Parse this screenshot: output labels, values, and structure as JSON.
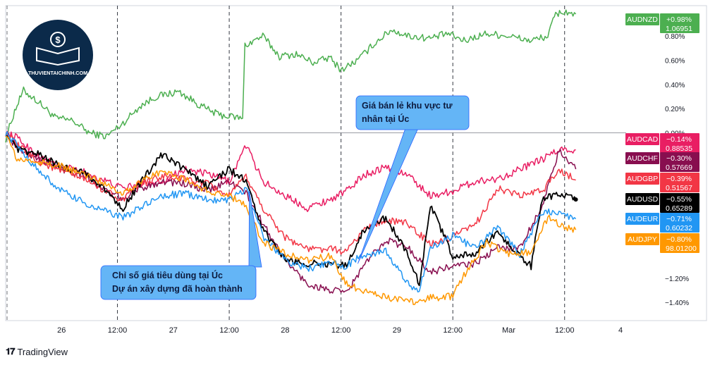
{
  "branding": {
    "logo_text": "THUVIENTAICHINH.COM",
    "footer": "TradingView"
  },
  "colors": {
    "grid": "#e0e3eb",
    "axis_text": "#131722",
    "callout_fill": "#64b5f6",
    "callout_border": "#2962ff"
  },
  "chart_data": {
    "type": "line",
    "xlabel": "",
    "ylabel": "",
    "x_tick_labels": [
      "26",
      "12:00",
      "27",
      "12:00",
      "28",
      "12:00",
      "29",
      "12:00",
      "Mar",
      "12:00",
      "4"
    ],
    "x_ticks": [
      0.5,
      1.0,
      1.5,
      2.0,
      2.5,
      3.0,
      3.5,
      4.0,
      4.5,
      5.0,
      5.5
    ],
    "day_separators": [
      1.0,
      2.0,
      3.0,
      4.0,
      5.0
    ],
    "xlim": [
      0,
      5.5
    ],
    "ylim": [
      -1.55,
      1.05
    ],
    "y_unit": "%",
    "y_ticks": [
      0.8,
      0.6,
      0.4,
      0.2,
      0.0,
      -1.2,
      -1.4
    ],
    "y_tick_labels": [
      "0.80%",
      "0.60%",
      "0.40%",
      "0.20%",
      "0.00%",
      "−1.20%",
      "−1.40%"
    ],
    "zero_line": 0.0,
    "series": [
      {
        "name": "AUDNZD",
        "color": "#4caf50",
        "change": "+0.98%",
        "price": "1.06951",
        "anchors": [
          [
            0.0,
            -0.05
          ],
          [
            0.08,
            0.18
          ],
          [
            0.16,
            0.35
          ],
          [
            0.3,
            0.25
          ],
          [
            0.45,
            0.12
          ],
          [
            0.6,
            0.1
          ],
          [
            0.75,
            0.0
          ],
          [
            0.9,
            -0.03
          ],
          [
            1.05,
            0.08
          ],
          [
            1.2,
            0.22
          ],
          [
            1.35,
            0.3
          ],
          [
            1.55,
            0.34
          ],
          [
            1.75,
            0.22
          ],
          [
            1.9,
            0.15
          ],
          [
            2.05,
            0.13
          ],
          [
            2.12,
            0.12
          ],
          [
            2.14,
            0.72
          ],
          [
            2.3,
            0.8
          ],
          [
            2.45,
            0.63
          ],
          [
            2.6,
            0.65
          ],
          [
            2.75,
            0.58
          ],
          [
            2.9,
            0.62
          ],
          [
            3.0,
            0.52
          ],
          [
            3.15,
            0.6
          ],
          [
            3.3,
            0.74
          ],
          [
            3.45,
            0.85
          ],
          [
            3.6,
            0.8
          ],
          [
            3.8,
            0.78
          ],
          [
            3.95,
            0.82
          ],
          [
            4.1,
            0.76
          ],
          [
            4.3,
            0.82
          ],
          [
            4.5,
            0.8
          ],
          [
            4.7,
            0.76
          ],
          [
            4.85,
            0.8
          ],
          [
            4.92,
            0.98
          ],
          [
            5.0,
            1.0
          ],
          [
            5.1,
            0.98
          ]
        ]
      },
      {
        "name": "AUDCAD",
        "color": "#e91e63",
        "change": "−0.14%",
        "price": "0.88535",
        "anchors": [
          [
            0.0,
            0.0
          ],
          [
            0.1,
            -0.04
          ],
          [
            0.3,
            -0.2
          ],
          [
            0.5,
            -0.28
          ],
          [
            0.7,
            -0.32
          ],
          [
            0.9,
            -0.4
          ],
          [
            1.05,
            -0.46
          ],
          [
            1.2,
            -0.42
          ],
          [
            1.4,
            -0.4
          ],
          [
            1.6,
            -0.3
          ],
          [
            1.8,
            -0.34
          ],
          [
            2.0,
            -0.4
          ],
          [
            2.15,
            -0.1
          ],
          [
            2.3,
            -0.4
          ],
          [
            2.5,
            -0.52
          ],
          [
            2.7,
            -0.62
          ],
          [
            2.9,
            -0.55
          ],
          [
            3.05,
            -0.48
          ],
          [
            3.2,
            -0.35
          ],
          [
            3.4,
            -0.28
          ],
          [
            3.6,
            -0.35
          ],
          [
            3.8,
            -0.52
          ],
          [
            4.0,
            -0.48
          ],
          [
            4.2,
            -0.4
          ],
          [
            4.4,
            -0.38
          ],
          [
            4.6,
            -0.3
          ],
          [
            4.8,
            -0.22
          ],
          [
            4.95,
            -0.14
          ],
          [
            5.1,
            -0.14
          ]
        ]
      },
      {
        "name": "AUDCHF",
        "color": "#880e4f",
        "change": "−0.30%",
        "price": "0.57669",
        "anchors": [
          [
            0.0,
            0.0
          ],
          [
            0.1,
            -0.12
          ],
          [
            0.3,
            -0.22
          ],
          [
            0.5,
            -0.3
          ],
          [
            0.7,
            -0.34
          ],
          [
            0.9,
            -0.48
          ],
          [
            1.05,
            -0.55
          ],
          [
            1.2,
            -0.46
          ],
          [
            1.4,
            -0.4
          ],
          [
            1.6,
            -0.42
          ],
          [
            1.8,
            -0.48
          ],
          [
            2.0,
            -0.4
          ],
          [
            2.15,
            -0.5
          ],
          [
            2.3,
            -0.75
          ],
          [
            2.5,
            -1.05
          ],
          [
            2.7,
            -1.25
          ],
          [
            2.9,
            -1.3
          ],
          [
            3.05,
            -1.32
          ],
          [
            3.2,
            -1.1
          ],
          [
            3.4,
            -0.88
          ],
          [
            3.6,
            -0.95
          ],
          [
            3.8,
            -1.15
          ],
          [
            4.0,
            -1.1
          ],
          [
            4.2,
            -1.08
          ],
          [
            4.4,
            -0.95
          ],
          [
            4.6,
            -0.95
          ],
          [
            4.8,
            -0.6
          ],
          [
            4.95,
            -0.15
          ],
          [
            5.1,
            -0.3
          ]
        ]
      },
      {
        "name": "AUDGBP",
        "color": "#f23645",
        "change": "−0.39%",
        "price": "0.51567",
        "anchors": [
          [
            0.0,
            0.0
          ],
          [
            0.1,
            -0.1
          ],
          [
            0.3,
            -0.24
          ],
          [
            0.5,
            -0.32
          ],
          [
            0.7,
            -0.38
          ],
          [
            0.9,
            -0.48
          ],
          [
            1.05,
            -0.56
          ],
          [
            1.2,
            -0.42
          ],
          [
            1.4,
            -0.36
          ],
          [
            1.6,
            -0.38
          ],
          [
            1.8,
            -0.42
          ],
          [
            2.0,
            -0.52
          ],
          [
            2.15,
            -0.36
          ],
          [
            2.3,
            -0.62
          ],
          [
            2.5,
            -0.86
          ],
          [
            2.7,
            -0.96
          ],
          [
            2.9,
            -0.96
          ],
          [
            3.05,
            -0.98
          ],
          [
            3.2,
            -0.8
          ],
          [
            3.4,
            -0.72
          ],
          [
            3.6,
            -0.75
          ],
          [
            3.8,
            -0.92
          ],
          [
            4.0,
            -0.86
          ],
          [
            4.2,
            -0.76
          ],
          [
            4.4,
            -0.46
          ],
          [
            4.6,
            -0.52
          ],
          [
            4.8,
            -0.48
          ],
          [
            4.95,
            -0.3
          ],
          [
            5.1,
            -0.39
          ]
        ]
      },
      {
        "name": "AUDUSD",
        "color": "#000000",
        "change": "−0.55%",
        "price": "0.65289",
        "anchors": [
          [
            0.0,
            0.0
          ],
          [
            0.1,
            -0.14
          ],
          [
            0.3,
            -0.18
          ],
          [
            0.5,
            -0.28
          ],
          [
            0.7,
            -0.32
          ],
          [
            0.9,
            -0.48
          ],
          [
            1.05,
            -0.62
          ],
          [
            1.2,
            -0.42
          ],
          [
            1.4,
            -0.18
          ],
          [
            1.6,
            -0.3
          ],
          [
            1.8,
            -0.44
          ],
          [
            2.0,
            -0.3
          ],
          [
            2.15,
            -0.4
          ],
          [
            2.3,
            -0.8
          ],
          [
            2.5,
            -1.05
          ],
          [
            2.7,
            -1.08
          ],
          [
            2.9,
            -1.08
          ],
          [
            3.05,
            -1.1
          ],
          [
            3.2,
            -0.8
          ],
          [
            3.4,
            -0.7
          ],
          [
            3.6,
            -1.0
          ],
          [
            3.7,
            -1.25
          ],
          [
            3.8,
            -0.6
          ],
          [
            4.0,
            -1.02
          ],
          [
            4.2,
            -1.0
          ],
          [
            4.4,
            -0.82
          ],
          [
            4.6,
            -1.02
          ],
          [
            4.7,
            -1.1
          ],
          [
            4.8,
            -0.55
          ],
          [
            4.95,
            -0.5
          ],
          [
            5.1,
            -0.55
          ]
        ]
      },
      {
        "name": "AUDEUR",
        "color": "#2196f3",
        "change": "−0.71%",
        "price": "0.60232",
        "anchors": [
          [
            0.0,
            0.0
          ],
          [
            0.1,
            -0.1
          ],
          [
            0.3,
            -0.32
          ],
          [
            0.5,
            -0.48
          ],
          [
            0.7,
            -0.58
          ],
          [
            0.9,
            -0.65
          ],
          [
            1.05,
            -0.7
          ],
          [
            1.2,
            -0.62
          ],
          [
            1.4,
            -0.52
          ],
          [
            1.6,
            -0.5
          ],
          [
            1.8,
            -0.55
          ],
          [
            2.0,
            -0.55
          ],
          [
            2.15,
            -0.46
          ],
          [
            2.3,
            -0.85
          ],
          [
            2.5,
            -1.05
          ],
          [
            2.7,
            -1.12
          ],
          [
            2.9,
            -1.08
          ],
          [
            3.05,
            -1.1
          ],
          [
            3.2,
            -1.0
          ],
          [
            3.4,
            -0.98
          ],
          [
            3.6,
            -1.25
          ],
          [
            3.7,
            -1.3
          ],
          [
            3.8,
            -0.95
          ],
          [
            4.0,
            -0.85
          ],
          [
            4.2,
            -0.95
          ],
          [
            4.4,
            -0.78
          ],
          [
            4.6,
            -1.0
          ],
          [
            4.8,
            -0.65
          ],
          [
            4.95,
            -0.66
          ],
          [
            5.1,
            -0.71
          ]
        ]
      },
      {
        "name": "AUDJPY",
        "color": "#ff9800",
        "change": "−0.80%",
        "price": "98.01200",
        "anchors": [
          [
            0.0,
            0.0
          ],
          [
            0.1,
            -0.22
          ],
          [
            0.3,
            -0.24
          ],
          [
            0.5,
            -0.28
          ],
          [
            0.7,
            -0.34
          ],
          [
            0.9,
            -0.42
          ],
          [
            1.05,
            -0.5
          ],
          [
            1.2,
            -0.4
          ],
          [
            1.4,
            -0.32
          ],
          [
            1.6,
            -0.38
          ],
          [
            1.8,
            -0.48
          ],
          [
            2.0,
            -0.52
          ],
          [
            2.15,
            -0.6
          ],
          [
            2.3,
            -0.9
          ],
          [
            2.5,
            -1.0
          ],
          [
            2.7,
            -1.05
          ],
          [
            2.9,
            -1.02
          ],
          [
            3.05,
            -1.25
          ],
          [
            3.2,
            -1.3
          ],
          [
            3.4,
            -1.35
          ],
          [
            3.6,
            -1.4
          ],
          [
            3.8,
            -1.36
          ],
          [
            4.0,
            -1.35
          ],
          [
            4.1,
            -1.18
          ],
          [
            4.3,
            -0.9
          ],
          [
            4.5,
            -1.0
          ],
          [
            4.7,
            -0.98
          ],
          [
            4.85,
            -0.7
          ],
          [
            4.95,
            -0.76
          ],
          [
            5.1,
            -0.8
          ]
        ]
      }
    ],
    "annotations": [
      {
        "text_lines": [
          "Chỉ số giá tiêu dùng tại Úc",
          "Dự án xây dựng đã hoàn thành"
        ],
        "pointer_x": 2.18,
        "pointer_y": -0.48
      },
      {
        "text_lines": [
          "Giá bán lẻ khu vực tư",
          "nhân tại Úc"
        ],
        "pointer_x": 3.15,
        "pointer_y": -1.08
      }
    ]
  }
}
